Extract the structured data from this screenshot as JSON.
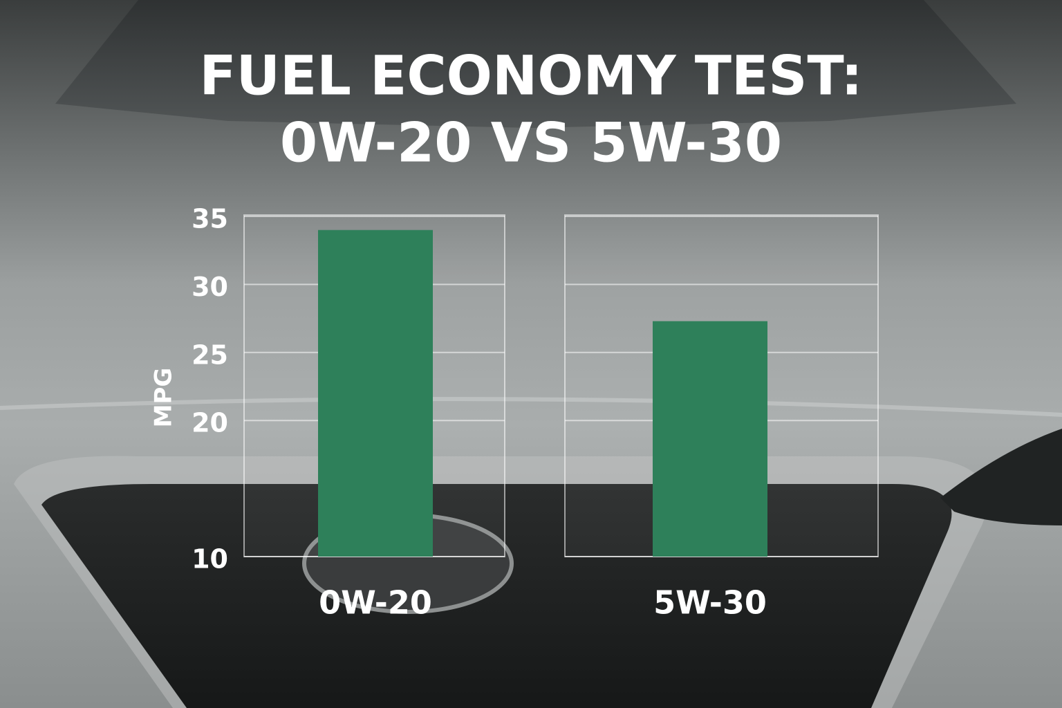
{
  "chart_data": {
    "type": "bar",
    "title": [
      "FUEL ECONOMY TEST:",
      "0W-20 VS 5W-30"
    ],
    "y_label": "MPG",
    "categories": [
      "0W-20",
      "5W-30"
    ],
    "values": [
      34,
      27.3
    ],
    "color": "#2e805a",
    "ylim": [
      10,
      35
    ],
    "yticks": [
      10,
      20,
      25,
      30,
      35
    ],
    "grid": true
  }
}
